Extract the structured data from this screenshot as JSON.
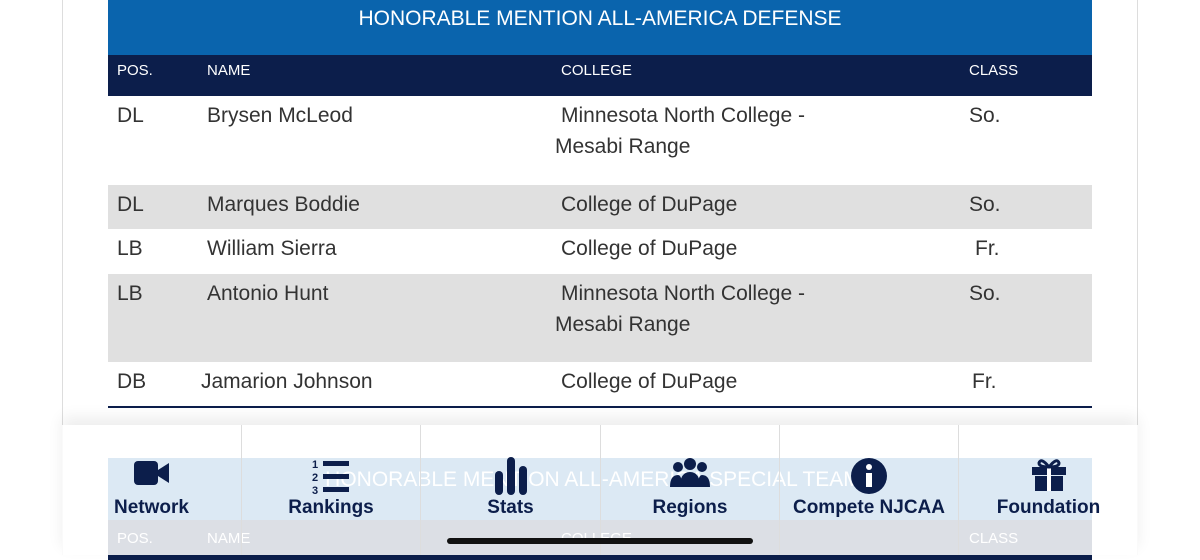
{
  "table": {
    "title": "HONORABLE MENTION ALL-AMERICA DEFENSE",
    "headers": [
      "POS.",
      "NAME",
      "COLLEGE",
      "CLASS"
    ],
    "rows": [
      [
        "DL",
        "Brysen McLeod",
        "Minnesota North College - Mesabi Range",
        "So."
      ],
      [
        "DL",
        "Marques Boddie",
        "College of DuPage",
        "So."
      ],
      [
        "LB",
        "William Sierra",
        "College of DuPage",
        "Fr."
      ],
      [
        "LB",
        "Antonio Hunt",
        "Minnesota North College - Mesabi Range",
        "So."
      ],
      [
        "DB",
        "Jamarion Johnson",
        "College of DuPage",
        "Fr."
      ]
    ]
  },
  "next_table": {
    "title": "HONORABLE MENTION ALL-AMERICA SPECIAL TEAMS",
    "headers": [
      "POS.",
      "NAME",
      "COLLEGE",
      "CLASS"
    ]
  },
  "nav": [
    "Network",
    "Rankings",
    "Stats",
    "Regions",
    "Compete NJCAA",
    "Foundation"
  ]
}
